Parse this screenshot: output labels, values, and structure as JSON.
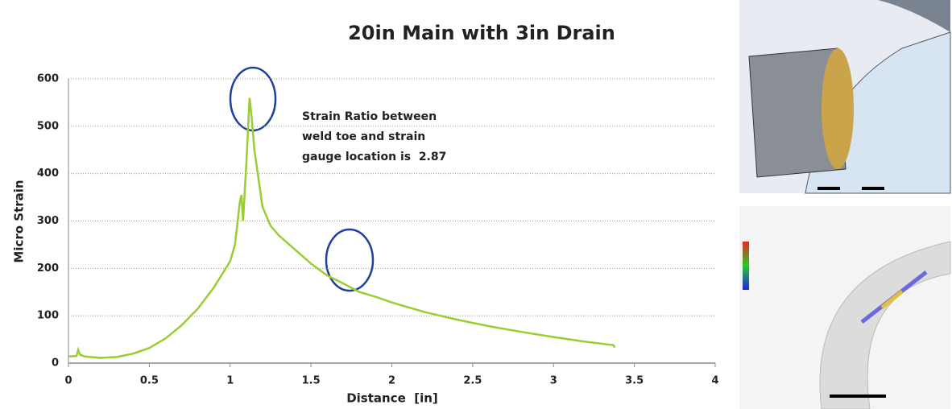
{
  "chart_data": {
    "type": "line",
    "title": "20in Main with 3in Drain",
    "x_label": "Distance  [in]",
    "y_label": "Micro Strain",
    "annotation": [
      "Strain Ratio between",
      "weld toe and strain",
      "gauge location is  2.87"
    ],
    "x": [
      0,
      0.05,
      0.06,
      0.07,
      0.1,
      0.2,
      0.3,
      0.4,
      0.5,
      0.6,
      0.7,
      0.8,
      0.9,
      1.0,
      1.03,
      1.06,
      1.07,
      1.08,
      1.1,
      1.12,
      1.13,
      1.15,
      1.2,
      1.25,
      1.3,
      1.4,
      1.5,
      1.6,
      1.7,
      1.8,
      1.9,
      2.0,
      2.2,
      2.4,
      2.6,
      2.8,
      3.0,
      3.2,
      3.37,
      3.38
    ],
    "series": [
      {
        "name": "Micro Strain",
        "color": "#9acd32",
        "values": [
          14,
          15,
          28,
          18,
          14,
          11,
          13,
          20,
          32,
          52,
          80,
          115,
          160,
          215,
          250,
          340,
          355,
          300,
          420,
          560,
          530,
          450,
          330,
          290,
          270,
          240,
          210,
          185,
          168,
          150,
          140,
          128,
          108,
          92,
          78,
          66,
          55,
          45,
          38,
          33
        ]
      }
    ],
    "xlim": [
      0,
      4
    ],
    "xticks": [
      0,
      0.5,
      1,
      1.5,
      2,
      2.5,
      3,
      3.5,
      4
    ],
    "ylim": [
      0,
      600
    ],
    "yticks": [
      0,
      100,
      200,
      300,
      400,
      500,
      600
    ],
    "grid": true
  }
}
